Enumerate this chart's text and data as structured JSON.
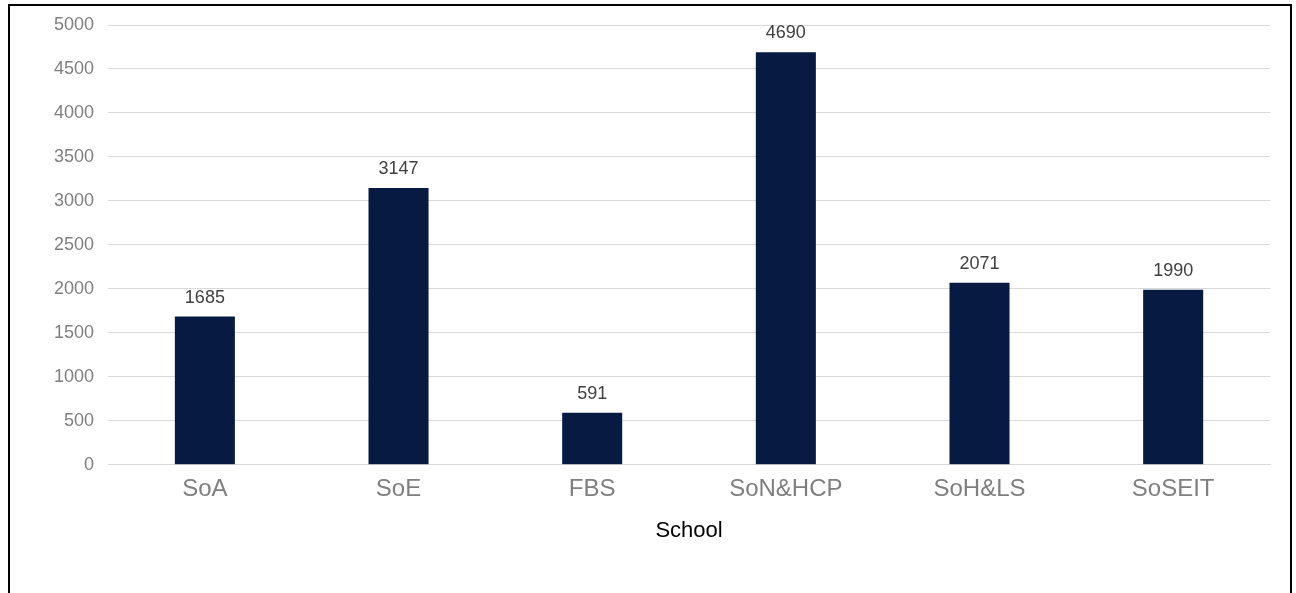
{
  "chart_data": {
    "type": "bar",
    "xlabel": "School",
    "categories": [
      "SoA",
      "SoE",
      "FBS",
      "SoN&HCP",
      "SoH&LS",
      "SoSEIT"
    ],
    "values": [
      1685,
      3147,
      591,
      4690,
      2071,
      1990
    ],
    "color": "#061a42",
    "ylim": [
      0,
      5000
    ],
    "yticks": [
      0,
      500,
      1000,
      1500,
      2000,
      2500,
      3000,
      3500,
      4000,
      4500,
      5000
    ],
    "grid": "y",
    "data_labels": true,
    "legend": false
  }
}
